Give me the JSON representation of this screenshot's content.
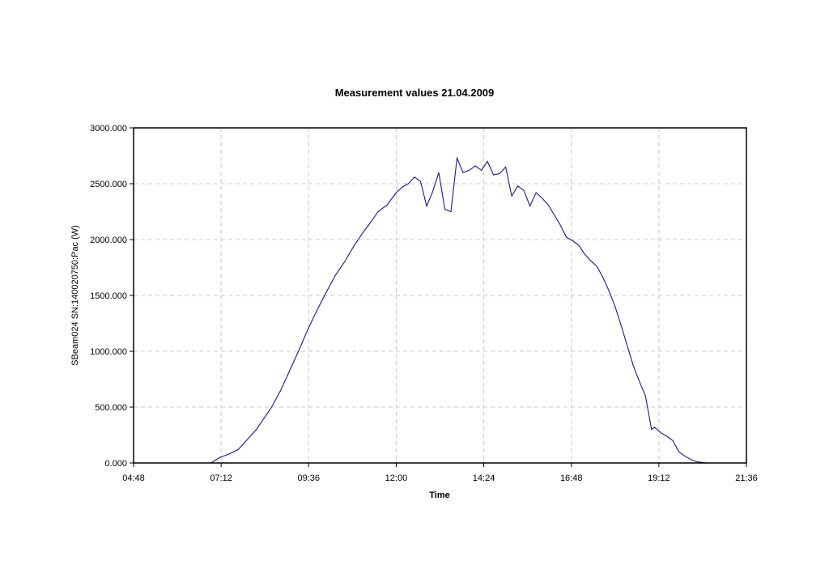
{
  "chart_data": {
    "type": "line",
    "title": "Measurement values 21.04.2009",
    "xlabel": "Time",
    "ylabel": "SBeam024 SN:140020750:Pac (W)",
    "xlim": [
      "04:48",
      "21:36"
    ],
    "ylim": [
      0,
      3000
    ],
    "x_ticks": [
      "04:48",
      "07:12",
      "09:36",
      "12:00",
      "14:24",
      "16:48",
      "19:12",
      "21:36"
    ],
    "y_ticks": [
      "0.000",
      "500.000",
      "1000.000",
      "1500.000",
      "2000.000",
      "2500.000",
      "3000.000"
    ],
    "grid": true,
    "legend": "none",
    "line_color": "#1a1a7a",
    "series": [
      {
        "x": [
          "06:55",
          "07:10",
          "07:25",
          "07:40",
          "07:50",
          "08:00",
          "08:10",
          "08:20",
          "08:35",
          "08:50",
          "09:05",
          "09:20",
          "09:35",
          "09:50",
          "10:05",
          "10:20",
          "10:35",
          "10:50",
          "11:05",
          "11:20",
          "11:30",
          "11:45",
          "12:00",
          "12:10",
          "12:20",
          "12:30",
          "12:40",
          "12:50",
          "13:00",
          "13:10",
          "13:20",
          "13:30",
          "13:40",
          "13:50",
          "14:00",
          "14:10",
          "14:20",
          "14:30",
          "14:40",
          "14:50",
          "15:00",
          "15:10",
          "15:20",
          "15:30",
          "15:40",
          "15:50",
          "16:00",
          "16:10",
          "16:20",
          "16:30",
          "16:40",
          "16:50",
          "17:00",
          "17:10",
          "17:20",
          "17:30",
          "17:40",
          "17:50",
          "18:00",
          "18:10",
          "18:20",
          "18:30",
          "18:40",
          "18:50",
          "19:00",
          "19:05",
          "19:15",
          "19:25",
          "19:35",
          "19:45",
          "19:55",
          "20:05",
          "20:15",
          "20:30",
          "20:40",
          "20:45",
          "21:00"
        ],
        "y": [
          0,
          50,
          80,
          120,
          180,
          240,
          300,
          380,
          500,
          650,
          830,
          1010,
          1200,
          1370,
          1530,
          1680,
          1800,
          1940,
          2060,
          2170,
          2250,
          2310,
          2420,
          2470,
          2500,
          2560,
          2520,
          2300,
          2430,
          2600,
          2270,
          2250,
          2730,
          2600,
          2620,
          2660,
          2620,
          2700,
          2580,
          2590,
          2650,
          2390,
          2480,
          2440,
          2300,
          2420,
          2370,
          2310,
          2220,
          2130,
          2020,
          1990,
          1950,
          1870,
          1810,
          1760,
          1660,
          1540,
          1400,
          1230,
          1050,
          870,
          730,
          600,
          300,
          320,
          270,
          240,
          200,
          100,
          60,
          30,
          10,
          0,
          0,
          0,
          0
        ]
      }
    ]
  }
}
